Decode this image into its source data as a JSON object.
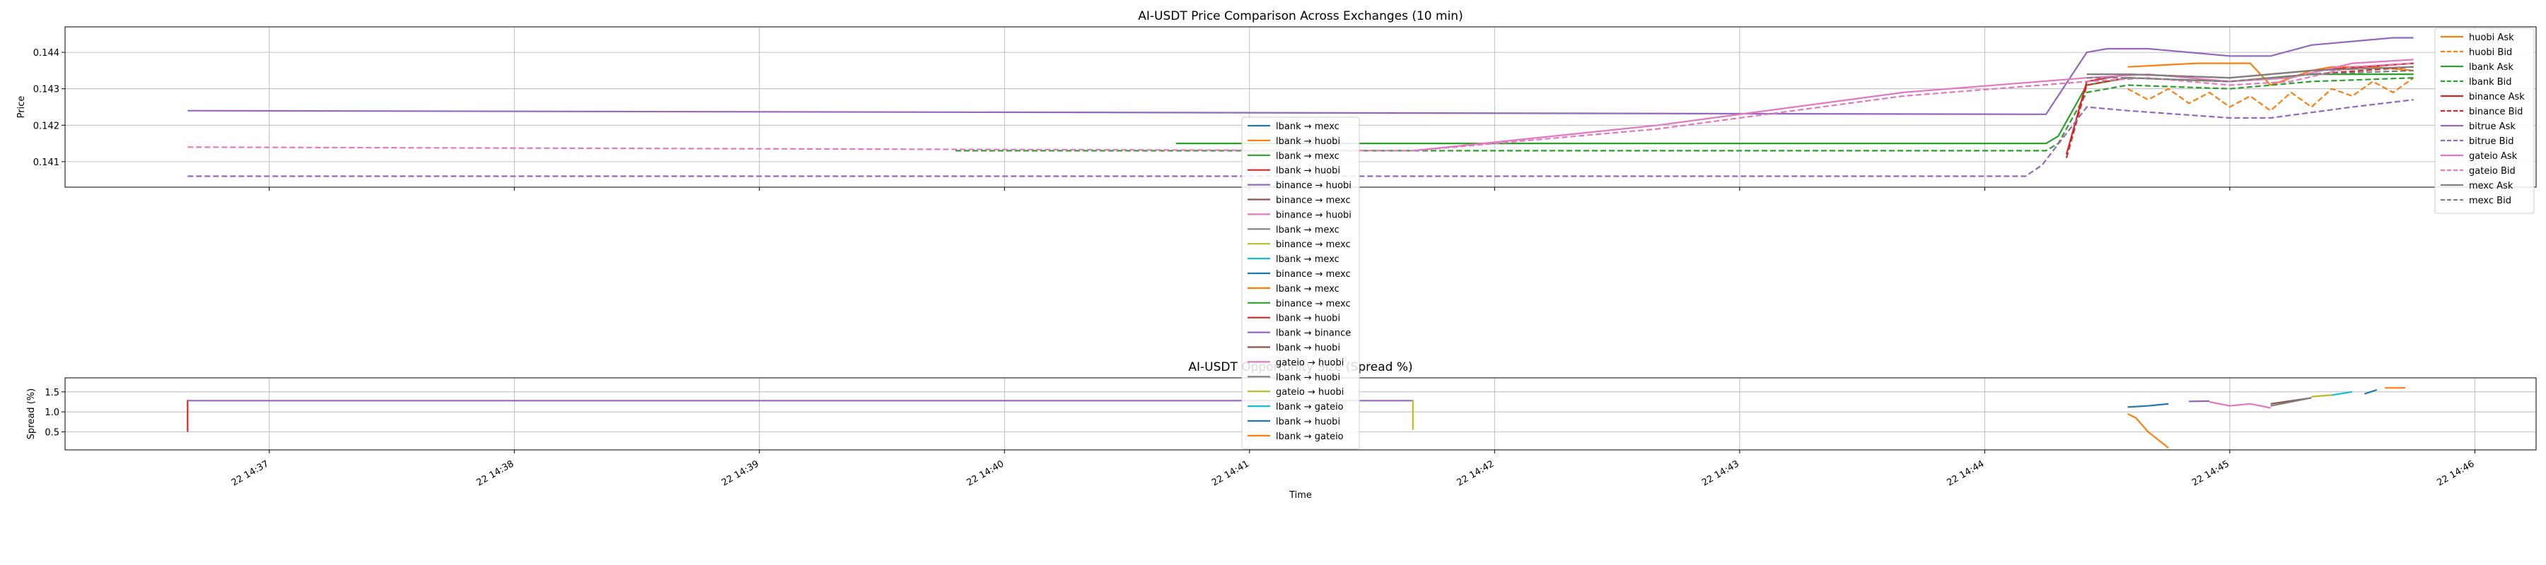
{
  "chart_data": [
    {
      "type": "line",
      "title": "AI-USDT Price Comparison Across Exchanges (10 min)",
      "xlabel": "",
      "ylabel": "Price",
      "ylim": [
        0.1403,
        0.1447
      ],
      "yticks": [
        "0.141",
        "0.142",
        "0.143",
        "0.144"
      ],
      "ytick_values": [
        0.141,
        0.142,
        0.143,
        0.144
      ],
      "grid": true,
      "legend": "right",
      "series": [
        {
          "name": "huobi Ask",
          "color": "#ff7f0e",
          "dash": "solid",
          "x": [
            "14:44:35",
            "14:44:52",
            "14:44:53",
            "14:45:05",
            "14:45:10",
            "14:45:20",
            "14:45:25",
            "14:45:35",
            "14:45:45"
          ],
          "y": [
            0.1436,
            0.1437,
            0.1437,
            0.1437,
            0.1431,
            0.1435,
            0.1436,
            0.1436,
            0.1435
          ]
        },
        {
          "name": "huobi Bid",
          "color": "#ff7f0e",
          "dash": "dashed",
          "x": [
            "14:44:35",
            "14:44:40",
            "14:44:45",
            "14:44:50",
            "14:44:55",
            "14:45:00",
            "14:45:05",
            "14:45:10",
            "14:45:15",
            "14:45:20",
            "14:45:25",
            "14:45:30",
            "14:45:35",
            "14:45:40",
            "14:45:45"
          ],
          "y": [
            0.143,
            0.1427,
            0.143,
            0.1426,
            0.1429,
            0.1425,
            0.1428,
            0.1424,
            0.1429,
            0.1425,
            0.143,
            0.1428,
            0.1432,
            0.1429,
            0.1433
          ]
        },
        {
          "name": "lbank Ask",
          "color": "#2ca02c",
          "dash": "solid",
          "x": [
            "14:40:42",
            "14:44:15",
            "14:44:18",
            "14:44:25",
            "14:44:35",
            "14:45:00",
            "14:45:20",
            "14:45:45"
          ],
          "y": [
            0.1415,
            0.1415,
            0.1417,
            0.1431,
            0.1433,
            0.1432,
            0.1434,
            0.1434
          ]
        },
        {
          "name": "lbank Bid",
          "color": "#2ca02c",
          "dash": "dashed",
          "x": [
            "14:39:48",
            "14:44:15",
            "14:44:18",
            "14:44:25",
            "14:44:35",
            "14:45:00",
            "14:45:20",
            "14:45:45"
          ],
          "y": [
            0.1413,
            0.1413,
            0.1415,
            0.1429,
            0.1431,
            0.143,
            0.1432,
            0.1433
          ]
        },
        {
          "name": "binance Ask",
          "color": "#d62728",
          "dash": "solid",
          "x": [
            "14:44:20",
            "14:44:25",
            "14:44:35",
            "14:45:00",
            "14:45:20",
            "14:45:45"
          ],
          "y": [
            0.1412,
            0.1432,
            0.1434,
            0.1433,
            0.1435,
            0.1437
          ]
        },
        {
          "name": "binance Bid",
          "color": "#d62728",
          "dash": "dashed",
          "x": [
            "14:44:20",
            "14:44:25",
            "14:44:35",
            "14:45:00",
            "14:45:20",
            "14:45:45"
          ],
          "y": [
            0.1411,
            0.1431,
            0.1433,
            0.1432,
            0.1434,
            0.1436
          ]
        },
        {
          "name": "bitrue Ask",
          "color": "#9467bd",
          "dash": "solid",
          "x": [
            "14:36:40",
            "14:44:12",
            "14:44:15",
            "14:44:25",
            "14:44:30",
            "14:44:40",
            "14:44:50",
            "14:45:00",
            "14:45:10",
            "14:45:20",
            "14:45:30",
            "14:45:40",
            "14:45:45"
          ],
          "y": [
            0.1424,
            0.1423,
            0.1423,
            0.144,
            0.1441,
            0.1441,
            0.144,
            0.1439,
            0.1439,
            0.1442,
            0.1443,
            0.1444,
            0.1444
          ]
        },
        {
          "name": "bitrue Bid",
          "color": "#9467bd",
          "dash": "dashed",
          "x": [
            "14:36:40",
            "14:44:10",
            "14:44:14",
            "14:44:25",
            "14:44:35",
            "14:45:00",
            "14:45:10",
            "14:45:30",
            "14:45:45"
          ],
          "y": [
            0.1406,
            0.1406,
            0.1409,
            0.1425,
            0.1424,
            0.1422,
            0.1422,
            0.1425,
            0.1427
          ]
        },
        {
          "name": "gateio Ask",
          "color": "#e377c2",
          "dash": "solid",
          "x": [
            "14:41:40",
            "14:42:40",
            "14:43:40",
            "14:44:25",
            "14:44:40",
            "14:45:00",
            "14:45:15",
            "14:45:30",
            "14:45:45"
          ],
          "y": [
            0.1413,
            0.142,
            0.1429,
            0.1433,
            0.1434,
            0.1432,
            0.1433,
            0.1437,
            0.1438
          ]
        },
        {
          "name": "gateio Bid",
          "color": "#e377c2",
          "dash": "dashed",
          "x": [
            "14:36:40",
            "14:41:40",
            "14:42:40",
            "14:43:40",
            "14:44:25",
            "14:44:40",
            "14:45:00",
            "14:45:15",
            "14:45:30",
            "14:45:45"
          ],
          "y": [
            0.1414,
            0.1413,
            0.1419,
            0.1428,
            0.1432,
            0.1433,
            0.1431,
            0.1432,
            0.1436,
            0.1437
          ]
        },
        {
          "name": "mexc Ask",
          "color": "#7f7f7f",
          "dash": "solid",
          "x": [
            "14:44:25",
            "14:44:35",
            "14:45:00",
            "14:45:20",
            "14:45:45"
          ],
          "y": [
            0.1434,
            0.1434,
            0.1433,
            0.1435,
            0.1436
          ]
        },
        {
          "name": "mexc Bid",
          "color": "#7f7f7f",
          "dash": "dashed",
          "x": [
            "14:44:25",
            "14:44:35",
            "14:45:00",
            "14:45:20",
            "14:45:45"
          ],
          "y": [
            0.1433,
            0.1433,
            0.1432,
            0.1434,
            0.1435
          ]
        }
      ]
    },
    {
      "type": "line",
      "title": "AI-USDT Opportunity Size (Spread %)",
      "xlabel": "Time",
      "ylabel": "Spread (%)",
      "ylim": [
        0.05,
        1.85
      ],
      "yticks": [
        "0.5",
        "1.0",
        "1.5"
      ],
      "ytick_values": [
        0.5,
        1.0,
        1.5
      ],
      "xticks": [
        "22 14:37",
        "22 14:38",
        "22 14:39",
        "22 14:40",
        "22 14:41",
        "22 14:42",
        "22 14:43",
        "22 14:44",
        "22 14:45",
        "22 14:46"
      ],
      "xtick_values": [
        "14:37:00",
        "14:38:00",
        "14:39:00",
        "14:40:00",
        "14:41:00",
        "14:42:00",
        "14:43:00",
        "14:44:00",
        "14:45:00",
        "14:46:00"
      ],
      "grid": true,
      "legend": "center",
      "series": [
        {
          "name": "lbank → mexc",
          "color": "#1f77b4"
        },
        {
          "name": "lbank → huobi",
          "color": "#ff7f0e"
        },
        {
          "name": "lbank → mexc",
          "color": "#2ca02c"
        },
        {
          "name": "lbank → huobi",
          "color": "#d62728",
          "x": [
            "14:36:40",
            "14:36:40"
          ],
          "y": [
            0.5,
            1.3
          ]
        },
        {
          "name": "binance → huobi",
          "color": "#9467bd",
          "x": [
            "14:36:40",
            "14:41:40"
          ],
          "y": [
            1.28,
            1.28
          ]
        },
        {
          "name": "binance → mexc",
          "color": "#8c564b"
        },
        {
          "name": "binance → huobi",
          "color": "#e377c2"
        },
        {
          "name": "lbank → mexc",
          "color": "#7f7f7f"
        },
        {
          "name": "binance → mexc",
          "color": "#bcbd22",
          "x": [
            "14:41:40",
            "14:41:40"
          ],
          "y": [
            0.55,
            1.3
          ]
        },
        {
          "name": "lbank → mexc",
          "color": "#17becf"
        },
        {
          "name": "binance → mexc",
          "color": "#1f77b4",
          "x": [
            "14:44:35",
            "14:44:40",
            "14:44:45"
          ],
          "y": [
            1.12,
            1.15,
            1.2
          ]
        },
        {
          "name": "lbank → mexc",
          "color": "#ff7f0e",
          "x": [
            "14:44:35",
            "14:44:37",
            "14:44:40",
            "14:44:45"
          ],
          "y": [
            0.95,
            0.85,
            0.5,
            0.1
          ]
        },
        {
          "name": "binance → mexc",
          "color": "#2ca02c"
        },
        {
          "name": "lbank → huobi",
          "color": "#d62728"
        },
        {
          "name": "lbank → binance",
          "color": "#9467bd",
          "x": [
            "14:44:50",
            "14:44:55"
          ],
          "y": [
            1.26,
            1.27
          ]
        },
        {
          "name": "lbank → huobi",
          "color": "#8c564b",
          "x": [
            "14:45:10",
            "14:45:20"
          ],
          "y": [
            1.2,
            1.35
          ]
        },
        {
          "name": "gateio → huobi",
          "color": "#e377c2",
          "x": [
            "14:44:55",
            "14:45:00",
            "14:45:05",
            "14:45:10"
          ],
          "y": [
            1.25,
            1.15,
            1.2,
            1.1
          ]
        },
        {
          "name": "lbank → huobi",
          "color": "#7f7f7f",
          "x": [
            "14:45:10",
            "14:45:15",
            "14:45:20"
          ],
          "y": [
            1.15,
            1.25,
            1.35
          ]
        },
        {
          "name": "gateio → huobi",
          "color": "#bcbd22",
          "x": [
            "14:45:20",
            "14:45:25"
          ],
          "y": [
            1.38,
            1.42
          ]
        },
        {
          "name": "lbank → gateio",
          "color": "#17becf",
          "x": [
            "14:45:25",
            "14:45:30"
          ],
          "y": [
            1.42,
            1.5
          ]
        },
        {
          "name": "lbank → huobi",
          "color": "#1f77b4",
          "x": [
            "14:45:33",
            "14:45:36"
          ],
          "y": [
            1.45,
            1.55
          ]
        },
        {
          "name": "lbank → gateio",
          "color": "#ff7f0e",
          "x": [
            "14:45:38",
            "14:45:43"
          ],
          "y": [
            1.6,
            1.6
          ]
        }
      ]
    }
  ]
}
